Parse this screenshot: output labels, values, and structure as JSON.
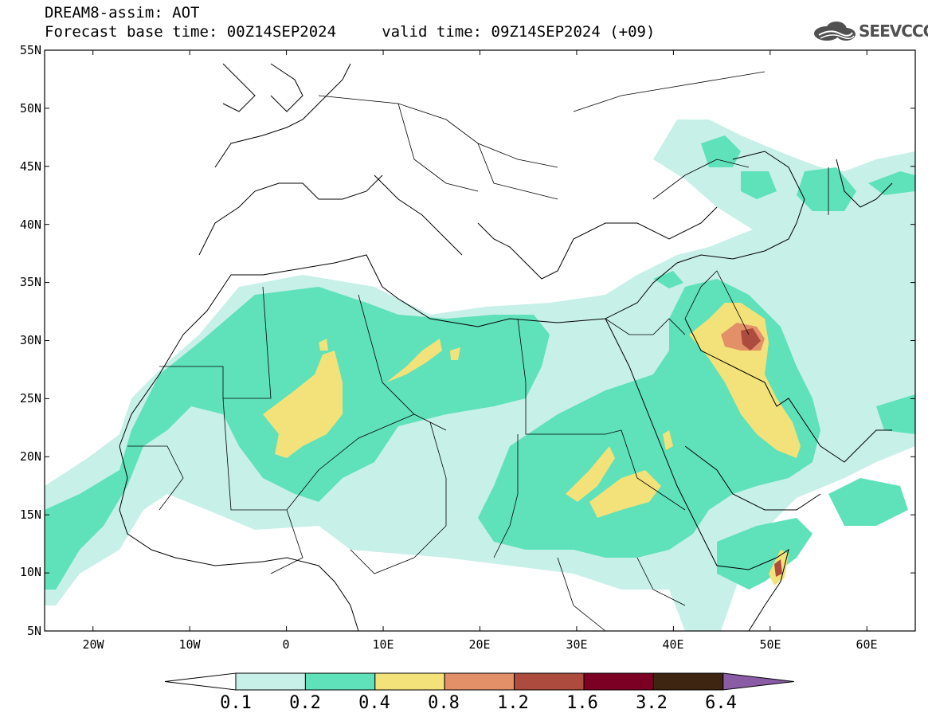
{
  "header": {
    "title_line1": "DREAM8-assim: AOT",
    "title_line2": "Forecast base time: 00Z14SEP2024     valid time: 09Z14SEP2024 (+09)"
  },
  "logo": {
    "text": "SEEVCCC",
    "icon": "cloud-logo-icon"
  },
  "map": {
    "lat_labels": [
      "55N",
      "50N",
      "45N",
      "40N",
      "35N",
      "30N",
      "25N",
      "20N",
      "15N",
      "10N",
      "5N"
    ],
    "lon_labels": [
      "20W",
      "10W",
      "0",
      "10E",
      "20E",
      "30E",
      "40E",
      "50E",
      "60E"
    ],
    "lat_range": [
      5,
      55
    ],
    "lon_range": [
      -25,
      65
    ],
    "variable": "AOT"
  },
  "colorbar": {
    "labels": [
      "0.1",
      "0.2",
      "0.4",
      "0.8",
      "1.2",
      "1.6",
      "3.2",
      "6.4"
    ],
    "colors": [
      "#ffffff",
      "#c6f0e8",
      "#5fe1b9",
      "#f3e27a",
      "#e38f68",
      "#ad4c3e",
      "#7b0024",
      "#3d2511",
      "#8a5ca6"
    ]
  }
}
